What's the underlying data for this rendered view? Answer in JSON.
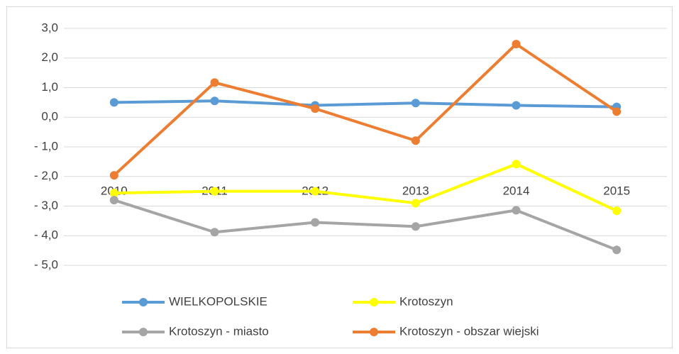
{
  "chart_data": {
    "type": "line",
    "categories": [
      "2010",
      "2011",
      "2012",
      "2013",
      "2014",
      "2015"
    ],
    "series": [
      {
        "name": "WIELKOPOLSKIE",
        "color": "#5b9bd5",
        "values": [
          0.5,
          0.55,
          0.4,
          0.48,
          0.4,
          0.35
        ]
      },
      {
        "name": "Krotoszyn",
        "color": "#ffff00",
        "values": [
          -2.56,
          -2.5,
          -2.5,
          -2.9,
          -1.58,
          -3.16
        ]
      },
      {
        "name": "Krotoszyn - miasto",
        "color": "#a5a5a5",
        "values": [
          -2.8,
          -3.88,
          -3.55,
          -3.69,
          -3.14,
          -4.48
        ]
      },
      {
        "name": "Krotoszyn - obszar wiejski",
        "color": "#ed7d31",
        "values": [
          -1.96,
          1.17,
          0.29,
          -0.79,
          2.47,
          0.19
        ]
      }
    ],
    "ylim": [
      -5,
      3
    ],
    "yticks": [
      {
        "value": -5,
        "label": "- 5,0"
      },
      {
        "value": -4,
        "label": "- 4,0"
      },
      {
        "value": -3,
        "label": "- 3,0"
      },
      {
        "value": -2,
        "label": "- 2,0"
      },
      {
        "value": -1,
        "label": "- 1,0"
      },
      {
        "value": 0,
        "label": "0,0"
      },
      {
        "value": 1,
        "label": "1,0"
      },
      {
        "value": 2,
        "label": "2,0"
      },
      {
        "value": 3,
        "label": "3,0"
      }
    ],
    "grid": true,
    "legend": "bottom"
  }
}
